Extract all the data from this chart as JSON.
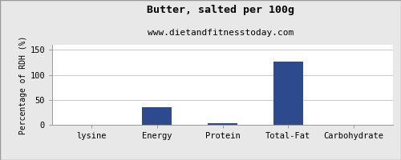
{
  "title": "Butter, salted per 100g",
  "subtitle": "www.dietandfitnesstoday.com",
  "ylabel": "Percentage of RDH (%)",
  "categories": [
    "lysine",
    "Energy",
    "Protein",
    "Total-Fat",
    "Carbohydrate"
  ],
  "values": [
    0.5,
    36,
    3,
    126,
    0.5
  ],
  "bar_color": "#2e4a8e",
  "ylim": [
    0,
    160
  ],
  "yticks": [
    0,
    50,
    100,
    150
  ],
  "background_color": "#e8e8e8",
  "plot_background": "#ffffff",
  "grid_color": "#c8c8c8",
  "title_fontsize": 9.5,
  "subtitle_fontsize": 8,
  "ylabel_fontsize": 7,
  "tick_fontsize": 7.5,
  "border_color": "#999999"
}
